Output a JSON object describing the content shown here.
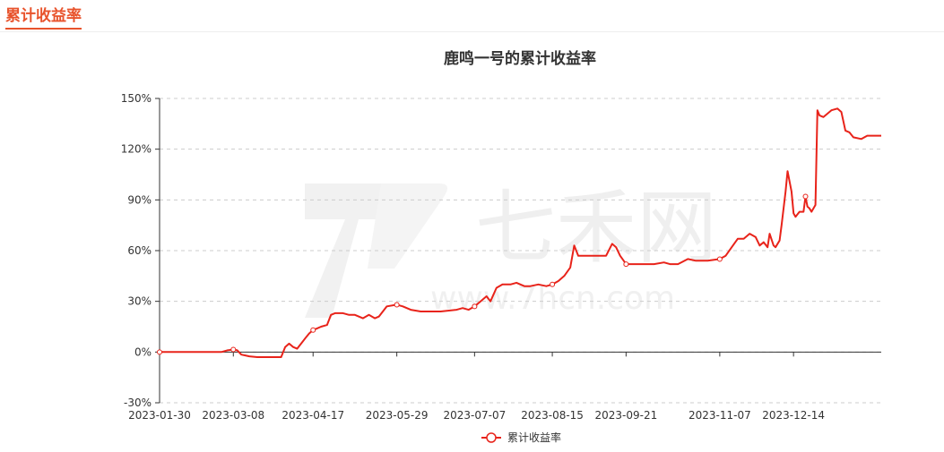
{
  "header": {
    "title": "累计收益率"
  },
  "watermark": {
    "logo_text": "七禾网",
    "url": "www.7hcn.com"
  },
  "colors": {
    "accent": "#e8532c",
    "series": "#e8231a",
    "grid": "#cccccc",
    "axis": "#333333"
  },
  "chart_data": {
    "type": "line",
    "title": "鹿鸣一号的累计收益率",
    "xlabel": "",
    "ylabel": "",
    "x_ticks": [
      "2023-01-30",
      "2023-03-08",
      "2023-04-17",
      "2023-05-29",
      "2023-07-07",
      "2023-08-15",
      "2023-09-21",
      "2023-11-07",
      "2023-12-14"
    ],
    "y_ticks": [
      150,
      120,
      90,
      60,
      30,
      0,
      -30
    ],
    "y_tick_labels": [
      "150%",
      "120%",
      "90%",
      "60%",
      "30%",
      "0%",
      "-30%"
    ],
    "ylim": [
      -30,
      150
    ],
    "grid": "horizontal-dashed",
    "legend_position": "bottom-center",
    "series": [
      {
        "name": "累计收益率",
        "color": "#e8231a",
        "points": [
          [
            "2023-01-30",
            0
          ],
          [
            "2023-02-10",
            0
          ],
          [
            "2023-02-20",
            0
          ],
          [
            "2023-03-02",
            0
          ],
          [
            "2023-03-05",
            1
          ],
          [
            "2023-03-08",
            1.5
          ],
          [
            "2023-03-10",
            1
          ],
          [
            "2023-03-12",
            -1.5
          ],
          [
            "2023-03-14",
            -2
          ],
          [
            "2023-03-16",
            -2.5
          ],
          [
            "2023-03-20",
            -3
          ],
          [
            "2023-03-25",
            -3
          ],
          [
            "2023-03-30",
            -3
          ],
          [
            "2023-04-01",
            -3
          ],
          [
            "2023-04-03",
            3
          ],
          [
            "2023-04-05",
            5
          ],
          [
            "2023-04-07",
            3
          ],
          [
            "2023-04-09",
            2
          ],
          [
            "2023-04-11",
            5
          ],
          [
            "2023-04-13",
            8
          ],
          [
            "2023-04-15",
            11
          ],
          [
            "2023-04-17",
            13
          ],
          [
            "2023-04-19",
            14
          ],
          [
            "2023-04-21",
            15
          ],
          [
            "2023-04-24",
            16
          ],
          [
            "2023-04-26",
            22
          ],
          [
            "2023-04-28",
            23
          ],
          [
            "2023-05-02",
            23
          ],
          [
            "2023-05-05",
            22
          ],
          [
            "2023-05-08",
            22
          ],
          [
            "2023-05-12",
            20
          ],
          [
            "2023-05-15",
            22
          ],
          [
            "2023-05-18",
            20
          ],
          [
            "2023-05-20",
            21
          ],
          [
            "2023-05-24",
            27
          ],
          [
            "2023-05-29",
            28
          ],
          [
            "2023-06-01",
            27
          ],
          [
            "2023-06-05",
            25
          ],
          [
            "2023-06-10",
            24
          ],
          [
            "2023-06-20",
            24
          ],
          [
            "2023-06-28",
            25
          ],
          [
            "2023-07-01",
            26
          ],
          [
            "2023-07-04",
            25
          ],
          [
            "2023-07-07",
            27
          ],
          [
            "2023-07-10",
            30
          ],
          [
            "2023-07-13",
            33
          ],
          [
            "2023-07-15",
            30
          ],
          [
            "2023-07-18",
            38
          ],
          [
            "2023-07-21",
            40
          ],
          [
            "2023-07-25",
            40
          ],
          [
            "2023-07-28",
            41
          ],
          [
            "2023-08-01",
            39
          ],
          [
            "2023-08-04",
            39
          ],
          [
            "2023-08-08",
            40
          ],
          [
            "2023-08-12",
            39
          ],
          [
            "2023-08-15",
            40
          ],
          [
            "2023-08-18",
            42
          ],
          [
            "2023-08-21",
            45
          ],
          [
            "2023-08-24",
            50
          ],
          [
            "2023-08-26",
            63
          ],
          [
            "2023-08-28",
            57
          ],
          [
            "2023-09-02",
            57
          ],
          [
            "2023-09-07",
            57
          ],
          [
            "2023-09-11",
            57
          ],
          [
            "2023-09-14",
            64
          ],
          [
            "2023-09-16",
            62
          ],
          [
            "2023-09-18",
            57
          ],
          [
            "2023-09-21",
            52
          ],
          [
            "2023-09-26",
            52
          ],
          [
            "2023-10-05",
            52
          ],
          [
            "2023-10-10",
            53
          ],
          [
            "2023-10-13",
            52
          ],
          [
            "2023-10-17",
            52
          ],
          [
            "2023-10-22",
            55
          ],
          [
            "2023-10-26",
            54
          ],
          [
            "2023-11-01",
            54
          ],
          [
            "2023-11-07",
            55
          ],
          [
            "2023-11-10",
            57
          ],
          [
            "2023-11-13",
            62
          ],
          [
            "2023-11-16",
            67
          ],
          [
            "2023-11-19",
            67
          ],
          [
            "2023-11-22",
            70
          ],
          [
            "2023-11-25",
            68
          ],
          [
            "2023-11-27",
            63
          ],
          [
            "2023-11-29",
            65
          ],
          [
            "2023-12-01",
            62
          ],
          [
            "2023-12-02",
            70
          ],
          [
            "2023-12-04",
            63
          ],
          [
            "2023-12-05",
            62
          ],
          [
            "2023-12-07",
            66
          ],
          [
            "2023-12-08",
            75
          ],
          [
            "2023-12-10",
            95
          ],
          [
            "2023-12-11",
            107
          ],
          [
            "2023-12-13",
            95
          ],
          [
            "2023-12-14",
            82
          ],
          [
            "2023-12-15",
            80
          ],
          [
            "2023-12-17",
            83
          ],
          [
            "2023-12-19",
            83
          ],
          [
            "2023-12-20",
            92
          ],
          [
            "2023-12-21",
            86
          ],
          [
            "2023-12-22",
            85
          ],
          [
            "2023-12-23",
            83
          ],
          [
            "2023-12-25",
            87
          ],
          [
            "2023-12-26",
            143
          ],
          [
            "2023-12-27",
            140
          ],
          [
            "2023-12-29",
            139
          ],
          [
            "2024-01-02",
            143
          ],
          [
            "2024-01-05",
            144
          ],
          [
            "2024-01-07",
            142
          ],
          [
            "2024-01-09",
            131
          ],
          [
            "2024-01-11",
            130
          ],
          [
            "2024-01-13",
            127
          ],
          [
            "2024-01-17",
            126
          ],
          [
            "2024-01-20",
            128
          ],
          [
            "2024-01-24",
            128
          ],
          [
            "2024-01-27",
            128
          ]
        ],
        "markers": [
          "2023-01-30",
          "2023-03-08",
          "2023-04-17",
          "2023-05-29",
          "2023-07-07",
          "2023-08-15",
          "2023-09-21",
          "2023-11-07",
          "2023-12-20"
        ]
      }
    ]
  }
}
